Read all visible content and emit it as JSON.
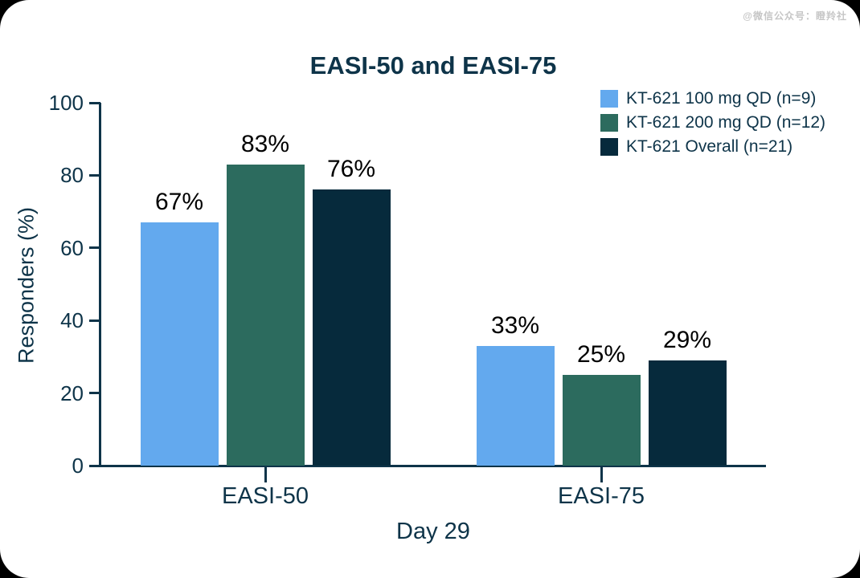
{
  "watermark": "@微信公众号：瞪羚社",
  "chart_data": {
    "type": "bar",
    "title": "EASI-50 and EASI-75",
    "xlabel": "Day 29",
    "ylabel": "Responders (%)",
    "categories": [
      "EASI-50",
      "EASI-75"
    ],
    "series": [
      {
        "name": "KT-621 100 mg QD (n=9)",
        "color": "#63a9ee",
        "values": [
          67,
          33
        ]
      },
      {
        "name": "KT-621 200 mg QD (n=12)",
        "color": "#2c6b5e",
        "values": [
          83,
          25
        ]
      },
      {
        "name": "KT-621 Overall (n=21)",
        "color": "#062a3c",
        "values": [
          76,
          29
        ]
      }
    ],
    "value_suffix": "%",
    "ylim": [
      0,
      100
    ],
    "yticks": [
      0,
      20,
      40,
      60,
      80,
      100
    ],
    "grid": false,
    "legend_position": "top-right",
    "axis_color": "#0e3449",
    "value_label_color": "#000000",
    "title_color": "#0e3449"
  }
}
